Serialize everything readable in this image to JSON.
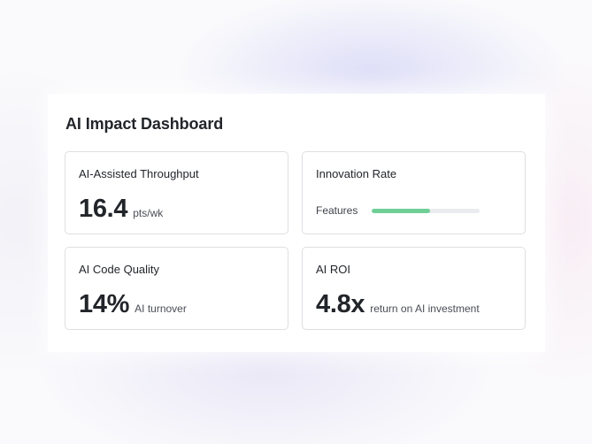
{
  "dashboard": {
    "title": "AI Impact Dashboard"
  },
  "cards": {
    "throughput": {
      "label": "AI-Assisted Throughput",
      "value": "16.4",
      "unit": "pts/wk"
    },
    "innovation": {
      "label": "Innovation Rate",
      "progress_label": "Features",
      "progress_fraction": 0.54,
      "progress_color": "#6fcf97",
      "track_color": "#ebecef"
    },
    "code_quality": {
      "label": "AI Code Quality",
      "value": "14%",
      "unit": "AI turnover"
    },
    "roi": {
      "label": "AI ROI",
      "value": "4.8x",
      "unit": "return on AI investment"
    }
  }
}
